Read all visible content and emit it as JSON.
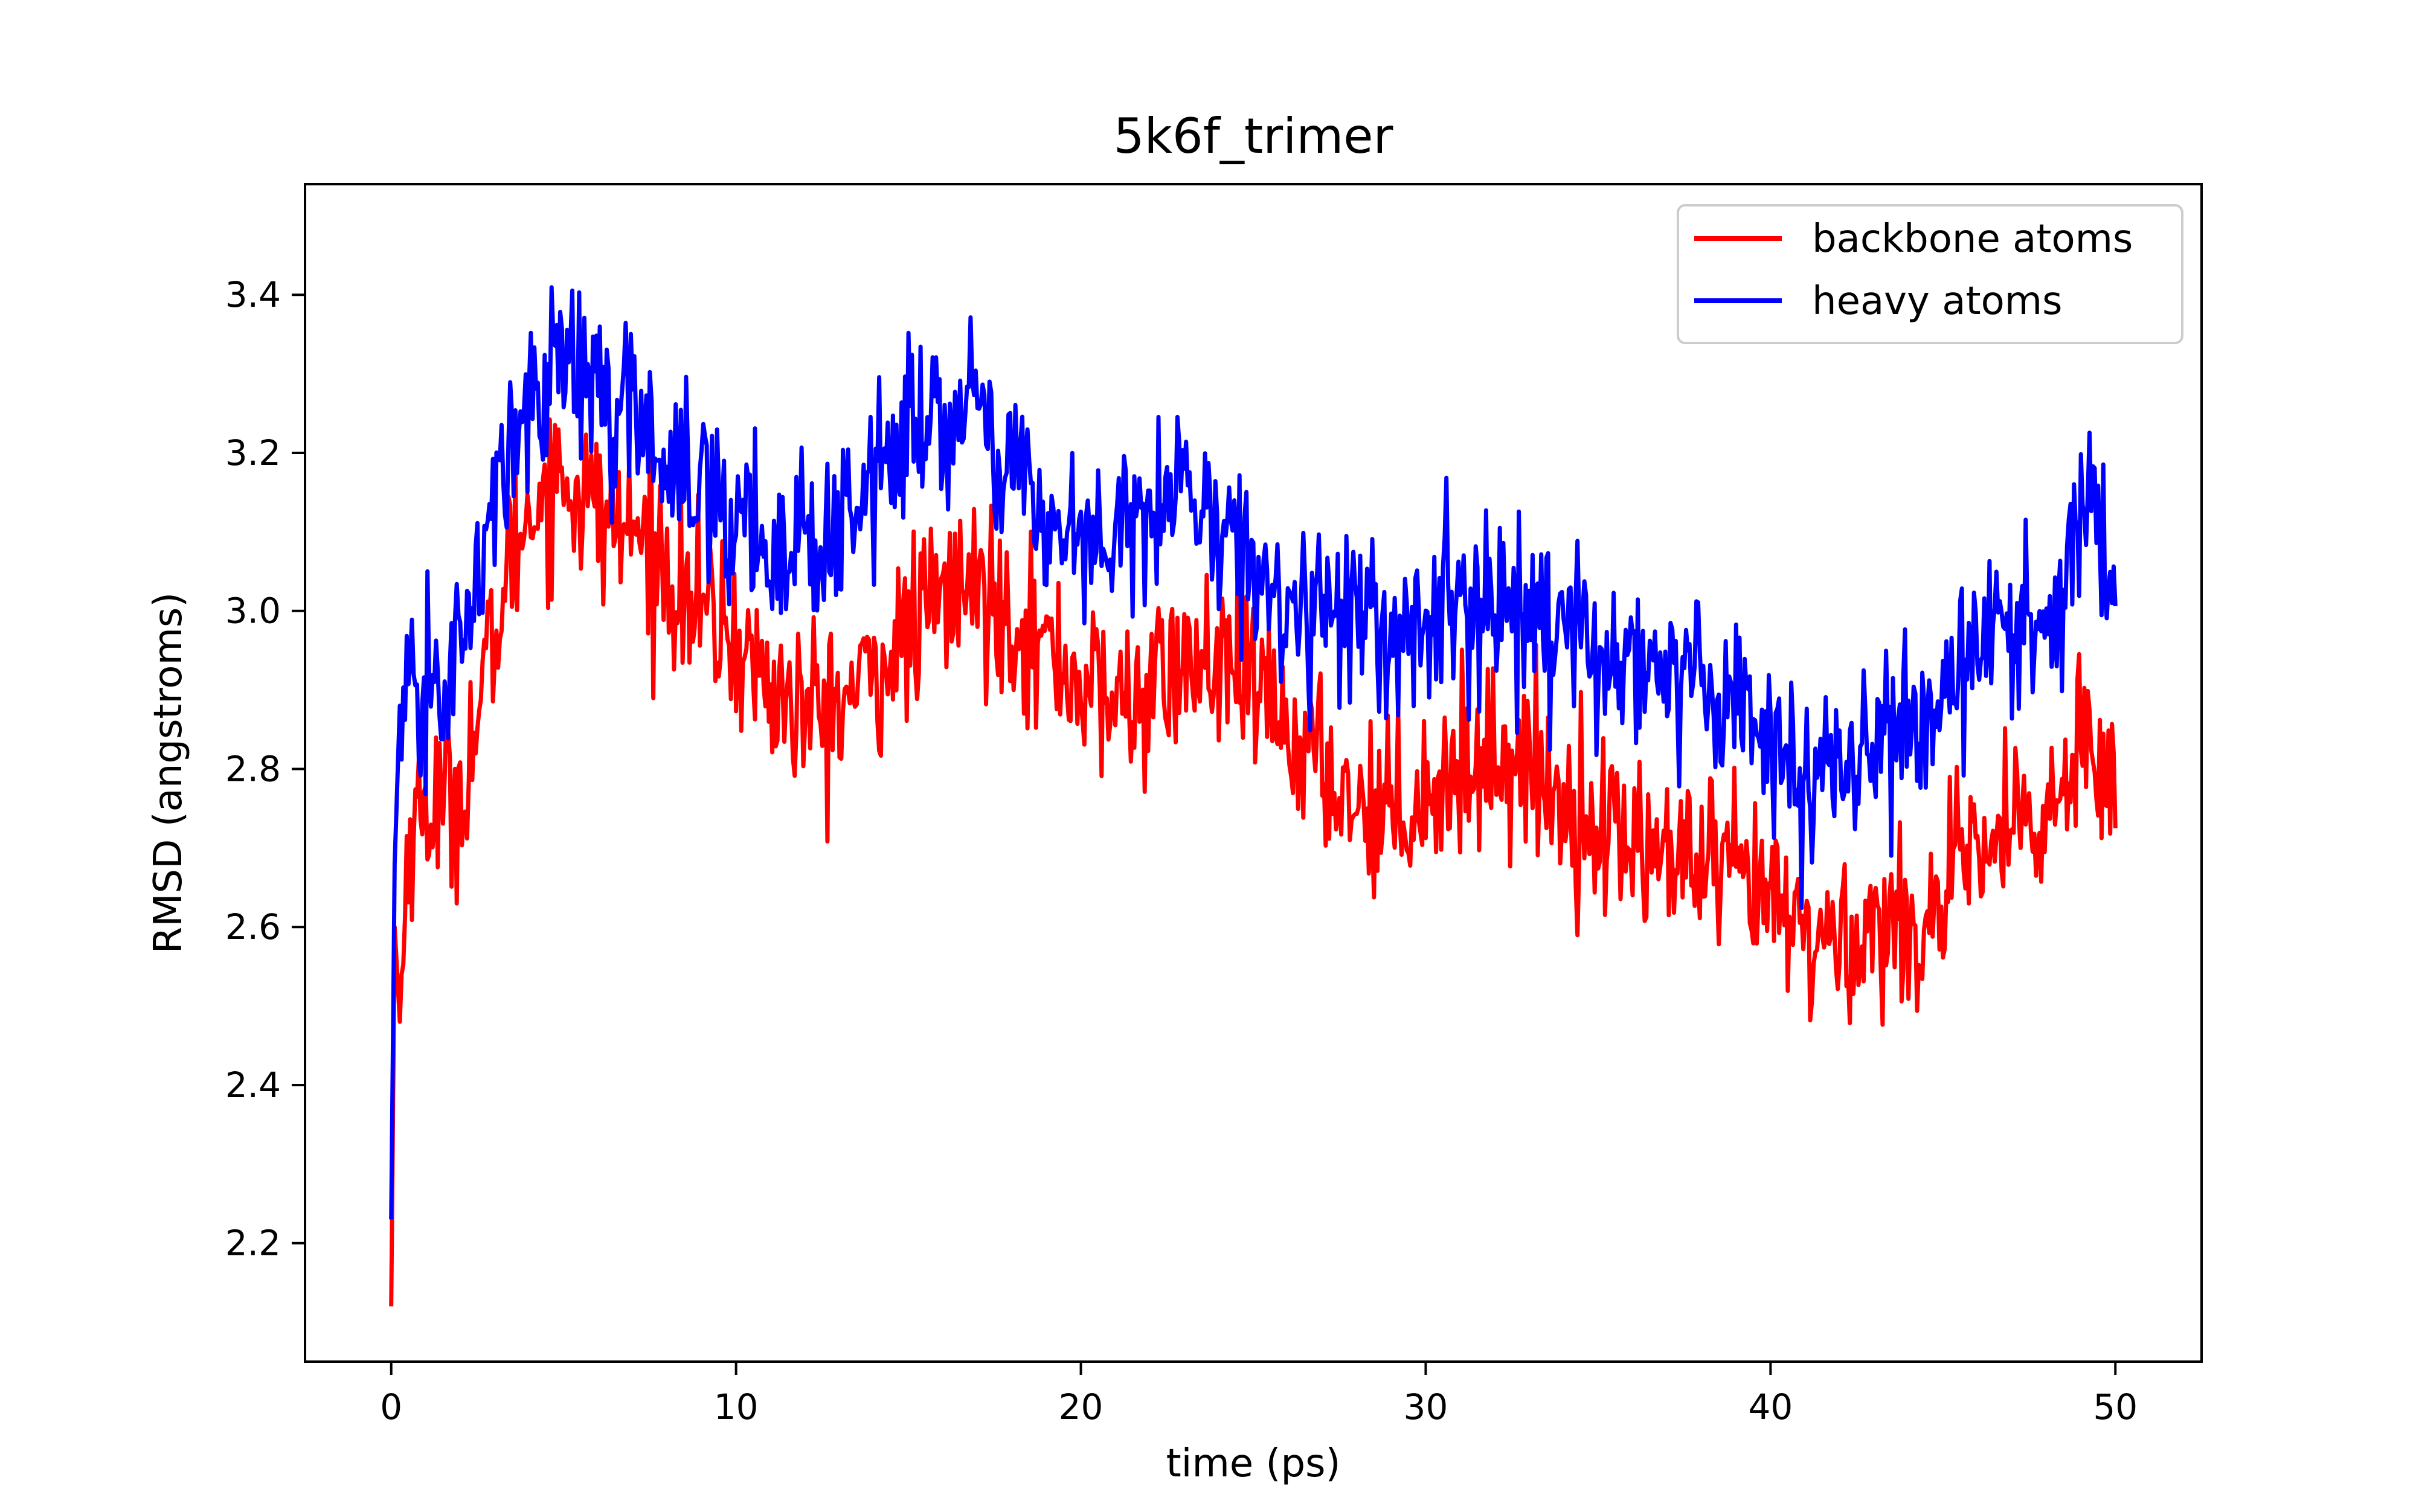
{
  "chart_data": {
    "type": "line",
    "title": "5k6f_trimer",
    "xlabel": "time (ps)",
    "ylabel": "RMSD (angstroms)",
    "xlim": [
      -2.5,
      52.5
    ],
    "ylim": [
      2.05,
      3.54
    ],
    "xticks": [
      0,
      10,
      20,
      30,
      40,
      50
    ],
    "xtick_labels": [
      "0",
      "10",
      "20",
      "30",
      "40",
      "50"
    ],
    "yticks": [
      2.2,
      2.4,
      2.6,
      2.8,
      3.0,
      3.2,
      3.4
    ],
    "ytick_labels": [
      "2.2",
      "2.4",
      "2.6",
      "2.8",
      "3.0",
      "3.2",
      "3.4"
    ],
    "grid": false,
    "legend_position": "top-right",
    "series": [
      {
        "name": "backbone atoms",
        "color": "#ff0000",
        "points": [
          [
            0.0,
            2.12
          ],
          [
            0.1,
            2.6
          ],
          [
            0.25,
            2.48
          ],
          [
            0.5,
            2.72
          ],
          [
            1.0,
            2.75
          ],
          [
            1.5,
            2.76
          ],
          [
            2.0,
            2.77
          ],
          [
            2.5,
            2.86
          ],
          [
            3.0,
            2.97
          ],
          [
            3.5,
            3.07
          ],
          [
            4.0,
            3.13
          ],
          [
            4.5,
            3.16
          ],
          [
            5.0,
            3.17
          ],
          [
            5.5,
            3.15
          ],
          [
            6.0,
            3.13
          ],
          [
            6.5,
            3.11
          ],
          [
            7.0,
            3.1
          ],
          [
            7.5,
            3.09
          ],
          [
            8.0,
            3.05
          ],
          [
            8.5,
            3.02
          ],
          [
            9.0,
            3.0
          ],
          [
            9.5,
            2.98
          ],
          [
            10.0,
            2.96
          ],
          [
            11.0,
            2.9
          ],
          [
            12.0,
            2.87
          ],
          [
            13.0,
            2.88
          ],
          [
            14.0,
            2.92
          ],
          [
            15.0,
            2.97
          ],
          [
            16.0,
            3.02
          ],
          [
            17.0,
            3.03
          ],
          [
            18.0,
            3.0
          ],
          [
            19.0,
            2.95
          ],
          [
            20.0,
            2.91
          ],
          [
            21.0,
            2.88
          ],
          [
            22.0,
            2.9
          ],
          [
            23.0,
            2.93
          ],
          [
            24.0,
            2.93
          ],
          [
            25.0,
            2.9
          ],
          [
            26.0,
            2.85
          ],
          [
            27.0,
            2.8
          ],
          [
            28.0,
            2.76
          ],
          [
            29.0,
            2.75
          ],
          [
            30.0,
            2.77
          ],
          [
            31.0,
            2.8
          ],
          [
            32.0,
            2.82
          ],
          [
            33.0,
            2.8
          ],
          [
            34.0,
            2.76
          ],
          [
            35.0,
            2.73
          ],
          [
            36.0,
            2.71
          ],
          [
            37.0,
            2.69
          ],
          [
            38.0,
            2.67
          ],
          [
            39.0,
            2.66
          ],
          [
            40.0,
            2.63
          ],
          [
            41.0,
            2.59
          ],
          [
            42.0,
            2.58
          ],
          [
            43.0,
            2.6
          ],
          [
            44.0,
            2.6
          ],
          [
            45.0,
            2.63
          ],
          [
            46.0,
            2.69
          ],
          [
            47.0,
            2.72
          ],
          [
            48.0,
            2.73
          ],
          [
            48.5,
            2.78
          ],
          [
            49.0,
            2.86
          ],
          [
            49.5,
            2.84
          ],
          [
            50.0,
            2.78
          ]
        ]
      },
      {
        "name": "heavy atoms",
        "color": "#0000ff",
        "points": [
          [
            0.0,
            2.23
          ],
          [
            0.1,
            2.68
          ],
          [
            0.25,
            2.88
          ],
          [
            0.5,
            2.86
          ],
          [
            1.0,
            2.89
          ],
          [
            1.5,
            2.91
          ],
          [
            2.0,
            2.95
          ],
          [
            2.5,
            3.03
          ],
          [
            3.0,
            3.13
          ],
          [
            3.5,
            3.21
          ],
          [
            4.0,
            3.27
          ],
          [
            4.5,
            3.3
          ],
          [
            5.0,
            3.31
          ],
          [
            5.5,
            3.3
          ],
          [
            6.0,
            3.28
          ],
          [
            6.5,
            3.26
          ],
          [
            7.0,
            3.25
          ],
          [
            7.5,
            3.23
          ],
          [
            8.0,
            3.2
          ],
          [
            8.5,
            3.17
          ],
          [
            9.0,
            3.15
          ],
          [
            9.5,
            3.13
          ],
          [
            10.0,
            3.12
          ],
          [
            11.0,
            3.09
          ],
          [
            12.0,
            3.08
          ],
          [
            13.0,
            3.11
          ],
          [
            14.0,
            3.16
          ],
          [
            15.0,
            3.22
          ],
          [
            16.0,
            3.26
          ],
          [
            17.0,
            3.24
          ],
          [
            18.0,
            3.18
          ],
          [
            19.0,
            3.12
          ],
          [
            20.0,
            3.08
          ],
          [
            21.0,
            3.08
          ],
          [
            22.0,
            3.14
          ],
          [
            23.0,
            3.16
          ],
          [
            24.0,
            3.12
          ],
          [
            25.0,
            3.06
          ],
          [
            26.0,
            3.0
          ],
          [
            27.0,
            3.01
          ],
          [
            28.0,
            3.0
          ],
          [
            29.0,
            2.98
          ],
          [
            30.0,
            2.97
          ],
          [
            31.0,
            3.0
          ],
          [
            32.0,
            3.01
          ],
          [
            33.0,
            2.98
          ],
          [
            34.0,
            2.96
          ],
          [
            35.0,
            2.95
          ],
          [
            36.0,
            2.94
          ],
          [
            37.0,
            2.93
          ],
          [
            38.0,
            2.92
          ],
          [
            39.0,
            2.89
          ],
          [
            40.0,
            2.82
          ],
          [
            41.0,
            2.78
          ],
          [
            42.0,
            2.79
          ],
          [
            43.0,
            2.83
          ],
          [
            44.0,
            2.85
          ],
          [
            45.0,
            2.88
          ],
          [
            46.0,
            2.96
          ],
          [
            47.0,
            2.98
          ],
          [
            48.0,
            2.98
          ],
          [
            48.5,
            3.02
          ],
          [
            49.0,
            3.11
          ],
          [
            49.5,
            3.08
          ],
          [
            50.0,
            3.03
          ]
        ]
      }
    ]
  }
}
